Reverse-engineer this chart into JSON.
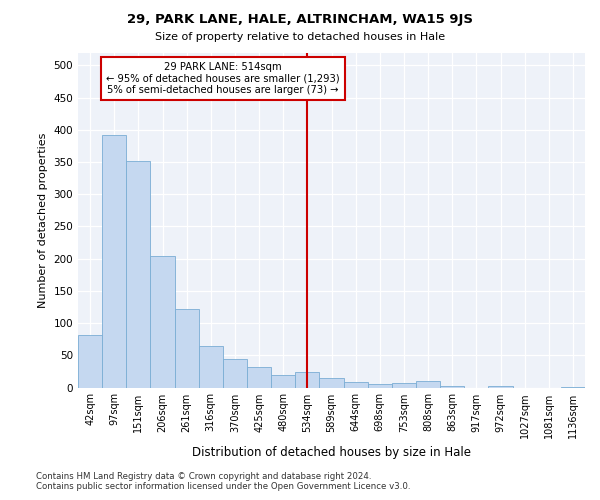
{
  "title": "29, PARK LANE, HALE, ALTRINCHAM, WA15 9JS",
  "subtitle": "Size of property relative to detached houses in Hale",
  "xlabel": "Distribution of detached houses by size in Hale",
  "ylabel": "Number of detached properties",
  "categories": [
    "42sqm",
    "97sqm",
    "151sqm",
    "206sqm",
    "261sqm",
    "316sqm",
    "370sqm",
    "425sqm",
    "480sqm",
    "534sqm",
    "589sqm",
    "644sqm",
    "698sqm",
    "753sqm",
    "808sqm",
    "863sqm",
    "917sqm",
    "972sqm",
    "1027sqm",
    "1081sqm",
    "1136sqm"
  ],
  "values": [
    81,
    392,
    351,
    204,
    122,
    64,
    44,
    32,
    20,
    24,
    15,
    8,
    6,
    7,
    10,
    3,
    0,
    2,
    0,
    0,
    1
  ],
  "bar_color": "#c5d8f0",
  "bar_edge_color": "#7aadd4",
  "property_line_x": 9.0,
  "annotation_text_line1": "29 PARK LANE: 514sqm",
  "annotation_text_line2": "← 95% of detached houses are smaller (1,293)",
  "annotation_text_line3": "5% of semi-detached houses are larger (73) →",
  "vline_color": "#cc0000",
  "annotation_box_edgecolor": "#cc0000",
  "background_color": "#eef2f9",
  "ylim": [
    0,
    520
  ],
  "yticks": [
    0,
    50,
    100,
    150,
    200,
    250,
    300,
    350,
    400,
    450,
    500
  ],
  "footer_line1": "Contains HM Land Registry data © Crown copyright and database right 2024.",
  "footer_line2": "Contains public sector information licensed under the Open Government Licence v3.0."
}
